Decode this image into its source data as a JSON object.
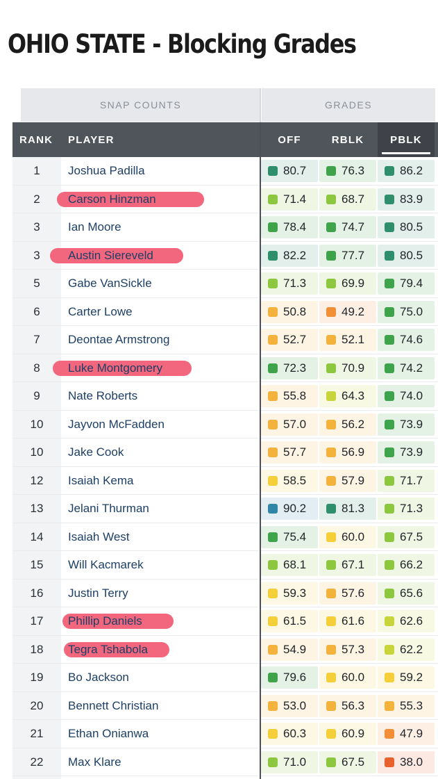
{
  "title": "OHIO STATE - Blocking Grades",
  "super_headers": {
    "snap": "SNAP COUNTS",
    "grades": "GRADES"
  },
  "headers": {
    "rank": "RANK",
    "player": "PLAYER",
    "off": "OFF",
    "rblk": "RBLK",
    "pblk": "PBLK"
  },
  "active_sort": "PBLK",
  "grade_colors": {
    "elite": "#2f86a6",
    "high_plus": "#2f8f6c",
    "high": "#3ea34a",
    "good": "#8dc63f",
    "avg_plus": "#c7d43a",
    "avg": "#f4cf3a",
    "below": "#f3b23b",
    "poor": "#f28f36",
    "bad": "#e8602c"
  },
  "rows": [
    {
      "rank": "1",
      "player": "Joshua Padilla",
      "highlight": false,
      "off": "80.7",
      "rblk": "76.3",
      "pblk": "86.2"
    },
    {
      "rank": "2",
      "player": "Carson Hinzman",
      "highlight": true,
      "off": "71.4",
      "rblk": "68.7",
      "pblk": "83.9"
    },
    {
      "rank": "3",
      "player": "Ian Moore",
      "highlight": false,
      "off": "78.4",
      "rblk": "74.7",
      "pblk": "80.5"
    },
    {
      "rank": "3",
      "player": "Austin Siereveld",
      "highlight": true,
      "off": "82.2",
      "rblk": "77.7",
      "pblk": "80.5"
    },
    {
      "rank": "5",
      "player": "Gabe VanSickle",
      "highlight": false,
      "off": "71.3",
      "rblk": "69.9",
      "pblk": "79.4"
    },
    {
      "rank": "6",
      "player": "Carter Lowe",
      "highlight": false,
      "off": "50.8",
      "rblk": "49.2",
      "pblk": "75.0"
    },
    {
      "rank": "7",
      "player": "Deontae Armstrong",
      "highlight": false,
      "off": "52.7",
      "rblk": "52.1",
      "pblk": "74.6"
    },
    {
      "rank": "8",
      "player": "Luke Montgomery",
      "highlight": true,
      "off": "72.3",
      "rblk": "70.9",
      "pblk": "74.2"
    },
    {
      "rank": "9",
      "player": "Nate Roberts",
      "highlight": false,
      "off": "55.8",
      "rblk": "64.3",
      "pblk": "74.0"
    },
    {
      "rank": "10",
      "player": "Jayvon McFadden",
      "highlight": false,
      "off": "57.0",
      "rblk": "56.2",
      "pblk": "73.9"
    },
    {
      "rank": "10",
      "player": "Jake Cook",
      "highlight": false,
      "off": "57.7",
      "rblk": "56.9",
      "pblk": "73.9"
    },
    {
      "rank": "12",
      "player": "Isaiah Kema",
      "highlight": false,
      "off": "58.5",
      "rblk": "57.9",
      "pblk": "71.7"
    },
    {
      "rank": "13",
      "player": "Jelani Thurman",
      "highlight": false,
      "off": "90.2",
      "rblk": "81.3",
      "pblk": "71.3"
    },
    {
      "rank": "14",
      "player": "Isaiah West",
      "highlight": false,
      "off": "75.4",
      "rblk": "60.0",
      "pblk": "67.5"
    },
    {
      "rank": "15",
      "player": "Will Kacmarek",
      "highlight": false,
      "off": "68.1",
      "rblk": "67.1",
      "pblk": "66.2"
    },
    {
      "rank": "16",
      "player": "Justin Terry",
      "highlight": false,
      "off": "59.3",
      "rblk": "57.6",
      "pblk": "65.6"
    },
    {
      "rank": "17",
      "player": "Phillip Daniels",
      "highlight": true,
      "off": "61.5",
      "rblk": "61.6",
      "pblk": "62.6"
    },
    {
      "rank": "18",
      "player": "Tegra Tshabola",
      "highlight": true,
      "off": "54.9",
      "rblk": "57.3",
      "pblk": "62.2"
    },
    {
      "rank": "19",
      "player": "Bo Jackson",
      "highlight": false,
      "off": "79.6",
      "rblk": "60.0",
      "pblk": "59.2"
    },
    {
      "rank": "20",
      "player": "Bennett Christian",
      "highlight": false,
      "off": "53.0",
      "rblk": "56.3",
      "pblk": "55.3"
    },
    {
      "rank": "21",
      "player": "Ethan Onianwa",
      "highlight": false,
      "off": "60.3",
      "rblk": "60.9",
      "pblk": "47.9"
    },
    {
      "rank": "22",
      "player": "Max Klare",
      "highlight": false,
      "off": "71.0",
      "rblk": "67.5",
      "pblk": "38.0"
    }
  ]
}
